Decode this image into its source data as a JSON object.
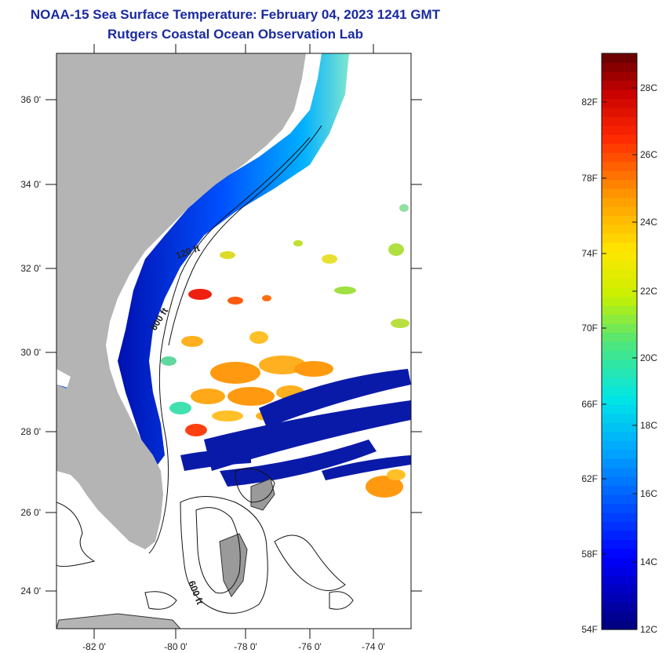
{
  "header": {
    "title": "NOAA-15 Sea Surface Temperature:  February 04, 2023 1241 GMT",
    "subtitle": "Rutgers Coastal Ocean Observation Lab"
  },
  "map": {
    "lat_labels": [
      "36 0'",
      "34 0'",
      "32 0'",
      "30 0'",
      "28 0'",
      "26 0'",
      "24 0'"
    ],
    "lon_labels": [
      "-82 0'",
      "-80 0'",
      "-78 0'",
      "-76 0'",
      "-74 0'"
    ],
    "isobath_labels": [
      "120 ft",
      "600 ft",
      "600 ft"
    ],
    "land_color": "#b4b4b4"
  },
  "colorbar": {
    "f_labels": [
      "82F",
      "78F",
      "74F",
      "70F",
      "66F",
      "62F",
      "58F",
      "54F"
    ],
    "c_labels": [
      "28C",
      "26C",
      "24C",
      "22C",
      "20C",
      "18C",
      "16C",
      "14C",
      "12C"
    ]
  }
}
